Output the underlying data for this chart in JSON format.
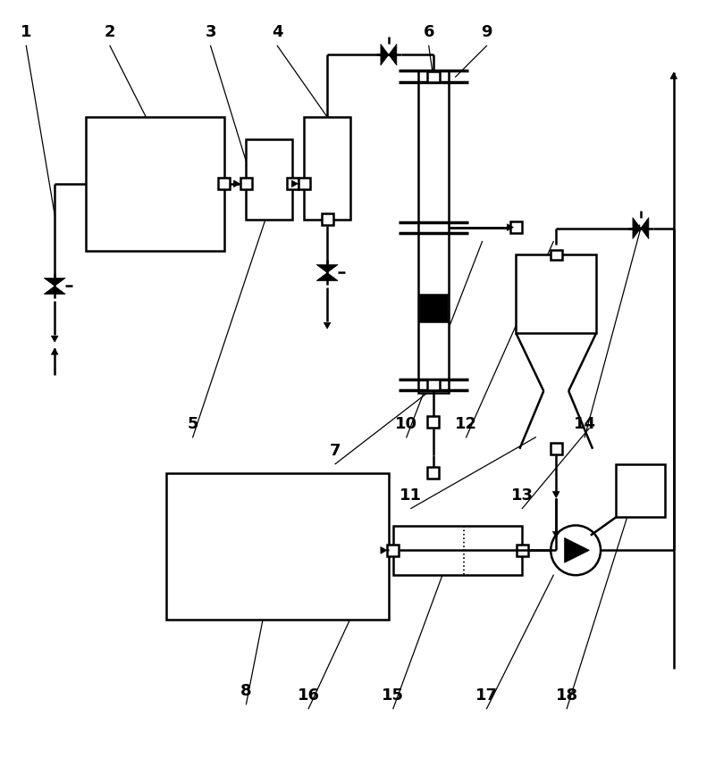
{
  "bg": "#ffffff",
  "lc": "#000000",
  "lw": 1.8,
  "fs": 13,
  "figsize": [
    8.0,
    8.49
  ],
  "dpi": 100
}
